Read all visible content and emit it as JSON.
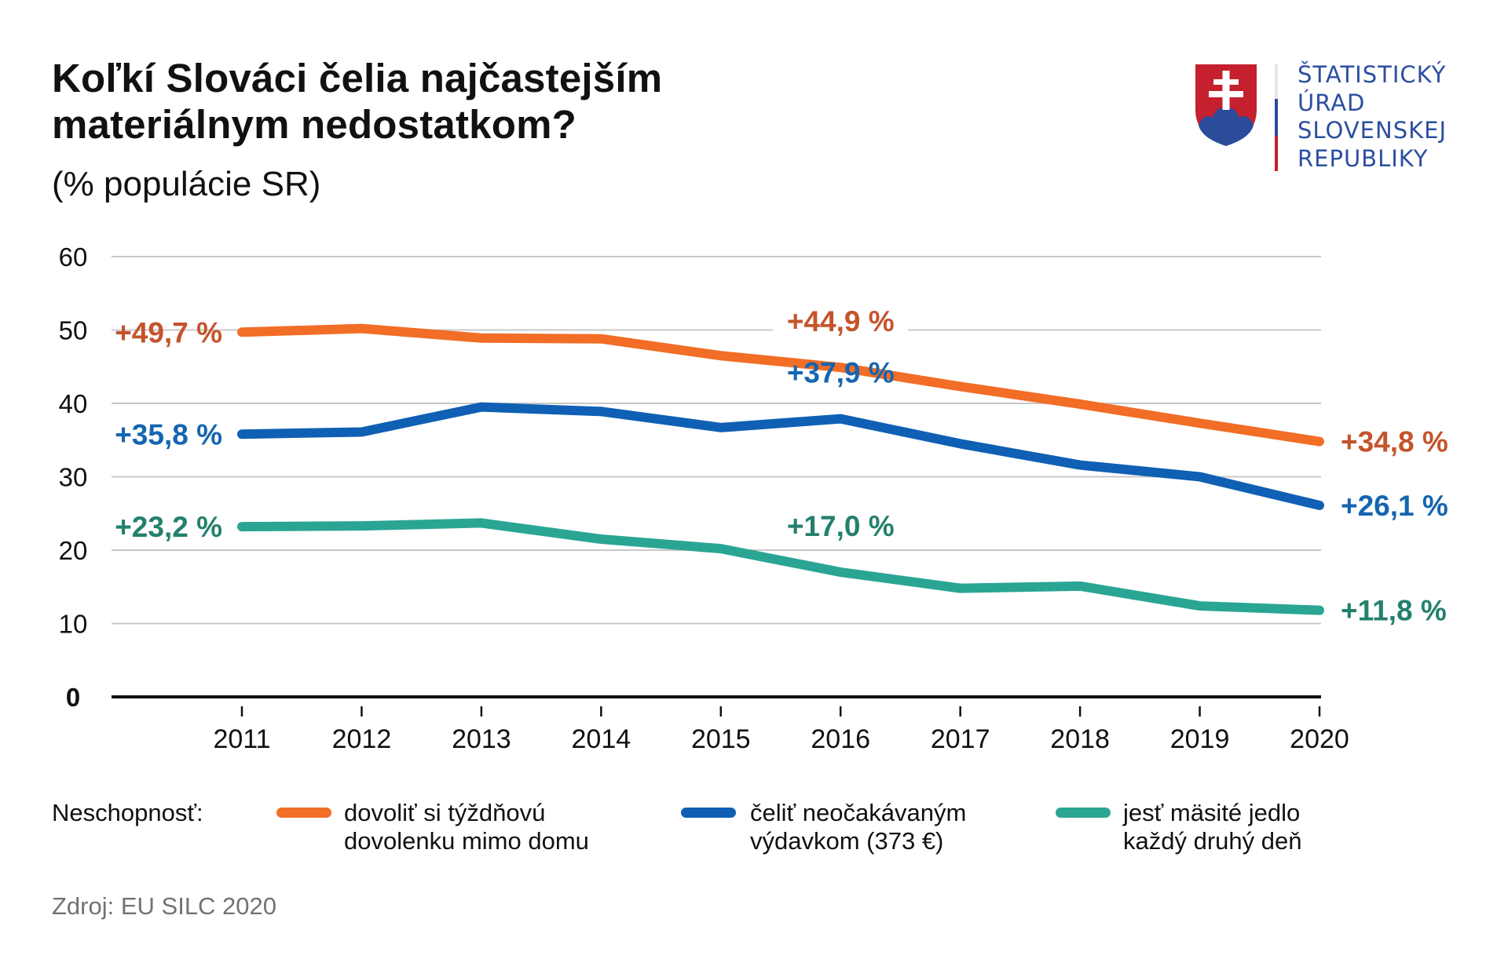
{
  "header": {
    "title_line1": "Koľkí Slováci čelia najčastejším",
    "title_line2": "materiálnym nedostatkom?",
    "subtitle": "(% populácie SR)"
  },
  "logo": {
    "emblem": "slovak-coat-of-arms-icon",
    "lines": [
      "ŠTATISTICKÝ",
      "ÚRAD",
      "SLOVENSKEJ",
      "REPUBLIKY"
    ],
    "text_color": "#2c4ea0"
  },
  "legend": {
    "title": "Neschopnosť:",
    "items": [
      {
        "line1": "dovoliť si týždňovú",
        "line2": "dovolenku mimo domu",
        "color": "#f26d26"
      },
      {
        "line1": "čeliť neočakávaným",
        "line2": "výdavkom (373 €)",
        "color": "#0f60b4"
      },
      {
        "line1": "jesť mäsité jedlo",
        "line2": "každý druhý deň",
        "color": "#2aa594"
      }
    ]
  },
  "source": "Zdroj: EU SILC 2020",
  "chart_data": {
    "type": "line",
    "title": "Koľkí Slováci čelia najčastejším materiálnym nedostatkom?",
    "subtitle": "(% populácie SR)",
    "xlabel": "",
    "ylabel": "% populácie SR",
    "x": [
      "2011",
      "2012",
      "2013",
      "2014",
      "2015",
      "2016",
      "2017",
      "2018",
      "2019",
      "2020"
    ],
    "ylim": [
      0,
      60
    ],
    "yticks": [
      "0",
      "10",
      "20",
      "30",
      "40",
      "50",
      "60"
    ],
    "grid": true,
    "legend_position": "bottom",
    "series": [
      {
        "name": "dovoliť si týždňovú dovolenku mimo domu",
        "color": "#f26d26",
        "label_color": "#c4542b",
        "values": [
          49.7,
          50.2,
          48.9,
          48.8,
          46.5,
          44.9,
          42.3,
          39.9,
          37.3,
          34.8
        ],
        "annotations": [
          {
            "index": 0,
            "text": "+49,7 %",
            "position": "left"
          },
          {
            "index": 5,
            "text": "+44,9 %",
            "position": "above"
          },
          {
            "index": 9,
            "text": "+34,8 %",
            "position": "right"
          }
        ]
      },
      {
        "name": "čeliť neočakávaným výdavkom (373 €)",
        "color": "#0f60b4",
        "label_color": "#1565b0",
        "values": [
          35.8,
          36.1,
          39.5,
          38.9,
          36.7,
          37.9,
          34.5,
          31.6,
          30.0,
          26.1
        ],
        "annotations": [
          {
            "index": 0,
            "text": "+35,8 %",
            "position": "left"
          },
          {
            "index": 5,
            "text": "+37,9 %",
            "position": "above"
          },
          {
            "index": 9,
            "text": "+26,1 %",
            "position": "right"
          }
        ]
      },
      {
        "name": "jesť mäsité jedlo každý druhý deň",
        "color": "#2aa594",
        "label_color": "#24806c",
        "values": [
          23.2,
          23.3,
          23.7,
          21.5,
          20.2,
          17.0,
          14.8,
          15.1,
          12.4,
          11.8
        ],
        "annotations": [
          {
            "index": 0,
            "text": "+23,2 %",
            "position": "left"
          },
          {
            "index": 5,
            "text": "+17,0 %",
            "position": "above"
          },
          {
            "index": 9,
            "text": "+11,8 %",
            "position": "right"
          }
        ]
      }
    ]
  }
}
